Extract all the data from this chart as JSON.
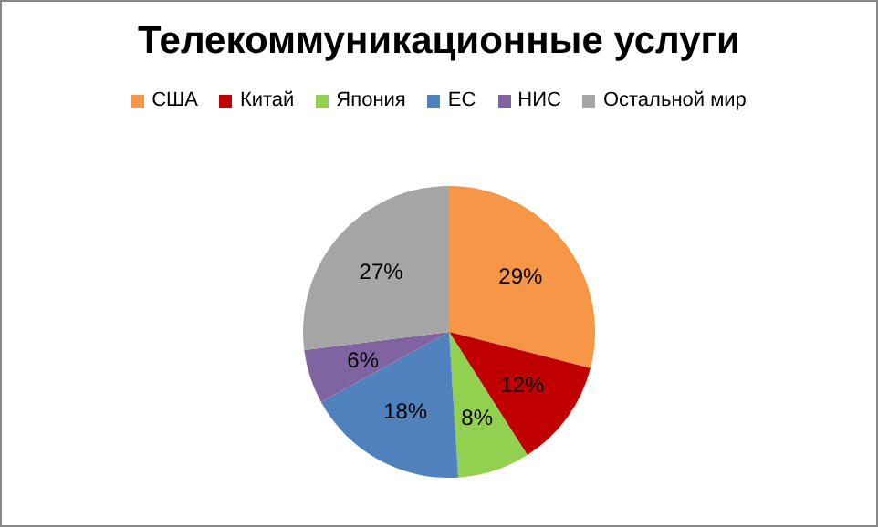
{
  "chart_data": {
    "type": "pie",
    "title": "Телекоммуникационные услуги",
    "categories": [
      "США",
      "Китай",
      "Япония",
      "ЕС",
      "НИС",
      "Остальной мир"
    ],
    "values": [
      29,
      12,
      8,
      18,
      6,
      27
    ],
    "colors": [
      "#f79646",
      "#c00000",
      "#92d050",
      "#4f81bd",
      "#8064a2",
      "#a5a5a5"
    ],
    "value_labels": [
      "29%",
      "12%",
      "8%",
      "18%",
      "6%",
      "27%"
    ],
    "legend": "top"
  }
}
